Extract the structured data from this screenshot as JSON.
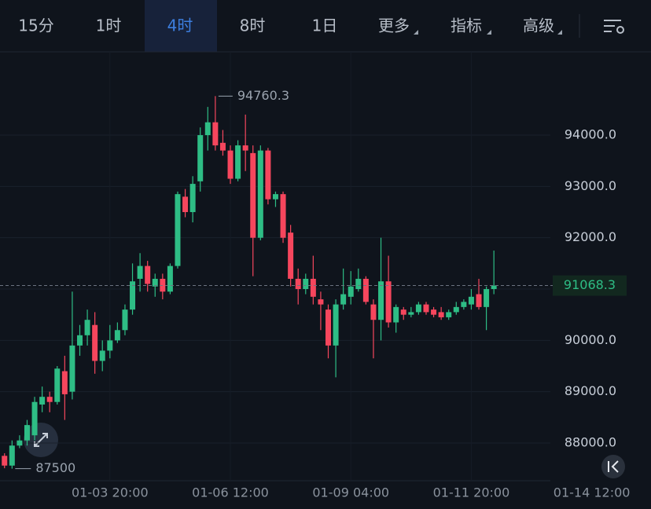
{
  "toolbar": {
    "tabs": [
      "15分",
      "1时",
      "4时",
      "8时",
      "1日",
      "更多",
      "指标",
      "高级"
    ],
    "active": 2
  },
  "chart_data": {
    "type": "candlestick",
    "x": [
      "01-01 12:00",
      "01-01 16:00",
      "01-01 20:00",
      "01-02 00:00",
      "01-02 04:00",
      "01-02 08:00",
      "01-02 12:00",
      "01-02 16:00",
      "01-02 20:00",
      "01-03 00:00",
      "01-03 04:00",
      "01-03 08:00",
      "01-03 12:00",
      "01-03 16:00",
      "01-03 20:00",
      "01-04 00:00",
      "01-04 04:00",
      "01-04 08:00",
      "01-04 12:00",
      "01-04 16:00",
      "01-04 20:00",
      "01-05 00:00",
      "01-05 04:00",
      "01-05 08:00",
      "01-05 12:00",
      "01-05 16:00",
      "01-05 20:00",
      "01-06 00:00",
      "01-06 04:00",
      "01-06 08:00",
      "01-06 12:00",
      "01-06 16:00",
      "01-06 20:00",
      "01-07 00:00",
      "01-07 04:00",
      "01-07 08:00",
      "01-07 12:00",
      "01-07 16:00",
      "01-07 20:00",
      "01-08 00:00",
      "01-08 04:00",
      "01-08 08:00",
      "01-08 12:00",
      "01-08 16:00",
      "01-08 20:00",
      "01-09 00:00",
      "01-09 04:00",
      "01-09 08:00",
      "01-09 12:00",
      "01-09 16:00",
      "01-09 20:00",
      "01-10 00:00",
      "01-10 04:00",
      "01-10 08:00",
      "01-10 12:00",
      "01-10 16:00",
      "01-10 20:00",
      "01-11 00:00",
      "01-11 04:00",
      "01-11 08:00",
      "01-11 12:00",
      "01-11 16:00",
      "01-11 20:00",
      "01-12 00:00",
      "01-12 04:00",
      "01-12 08:00"
    ],
    "open": [
      87750,
      87560,
      87950,
      88050,
      88150,
      88750,
      88900,
      88800,
      89400,
      89000,
      89900,
      90100,
      90300,
      89600,
      89800,
      90000,
      90200,
      90600,
      91200,
      91450,
      91050,
      91200,
      90950,
      91450,
      92800,
      92500,
      93100,
      94000,
      94250,
      93850,
      93700,
      93150,
      93800,
      93650,
      92000,
      93700,
      92750,
      92850,
      92100,
      91200,
      91000,
      91200,
      90800,
      90600,
      89900,
      90700,
      90850,
      91000,
      91200,
      90700,
      90400,
      91150,
      90350,
      90600,
      90500,
      90550,
      90700,
      90600,
      90550,
      90450,
      90550,
      90650,
      90700,
      90900,
      90650,
      91000
    ],
    "high": [
      87800,
      88050,
      88150,
      88450,
      88900,
      89100,
      89000,
      89500,
      89700,
      90950,
      90300,
      90600,
      90550,
      90000,
      90300,
      90350,
      90700,
      91500,
      91700,
      91550,
      91300,
      91300,
      91500,
      92900,
      92950,
      93200,
      94150,
      94550,
      94760.3,
      94100,
      93800,
      93900,
      94400,
      93800,
      93800,
      93750,
      92900,
      92900,
      92250,
      91400,
      91300,
      91650,
      90950,
      90700,
      90800,
      91400,
      91350,
      91400,
      91250,
      90800,
      92000,
      91650,
      90700,
      90650,
      90650,
      90750,
      90750,
      90650,
      90650,
      90600,
      90750,
      90800,
      91000,
      91200,
      91050,
      91750
    ],
    "low": [
      87508.4,
      87500,
      87900,
      87950,
      88050,
      88600,
      88600,
      88750,
      88450,
      88850,
      89700,
      89900,
      89350,
      89400,
      89650,
      89950,
      90100,
      90500,
      90950,
      90950,
      90850,
      90800,
      90900,
      91400,
      92400,
      92300,
      92900,
      93700,
      93700,
      93600,
      93050,
      93100,
      93300,
      91250,
      91950,
      92650,
      92600,
      91900,
      91050,
      90700,
      90900,
      90700,
      90200,
      89650,
      89280,
      90600,
      90700,
      90950,
      90700,
      89650,
      90000,
      90250,
      90150,
      90400,
      90450,
      90500,
      90500,
      90450,
      90400,
      90400,
      90500,
      90600,
      90600,
      90600,
      90200,
      90900
    ],
    "close": [
      87560,
      87950,
      88050,
      88350,
      88800,
      88900,
      88800,
      89450,
      88950,
      89900,
      90100,
      90400,
      89600,
      89800,
      90000,
      90200,
      90600,
      91150,
      91450,
      91100,
      91200,
      90950,
      91450,
      92850,
      92500,
      93050,
      94000,
      94250,
      93800,
      93700,
      93150,
      93800,
      93700,
      92000,
      93700,
      92750,
      92850,
      92000,
      91200,
      91000,
      91200,
      90850,
      90700,
      89900,
      90700,
      90900,
      91050,
      91200,
      90750,
      90400,
      91150,
      90350,
      90650,
      90500,
      90550,
      90700,
      90550,
      90500,
      90450,
      90550,
      90650,
      90750,
      90850,
      90650,
      91000,
      91068.3
    ],
    "up_color": "#2ebd85",
    "down_color": "#f6465d",
    "ylim": [
      87265,
      95623
    ],
    "yticks": [
      {
        "value": 88000,
        "label": "88000.0"
      },
      {
        "value": 89000,
        "label": "89000.0"
      },
      {
        "value": 90000,
        "label": "90000.0"
      },
      {
        "value": 91000,
        "label": "91000.0"
      },
      {
        "value": 92000,
        "label": "92000.0"
      },
      {
        "value": 93000,
        "label": "93000.0"
      },
      {
        "value": 94000,
        "label": "94000.0"
      }
    ],
    "xlim": [
      -0.6,
      81.9
    ],
    "xticks": [
      {
        "value": 14,
        "label": "01-03 20:00"
      },
      {
        "value": 30,
        "label": "01-06 12:00"
      },
      {
        "value": 46,
        "label": "01-09 04:00"
      },
      {
        "value": 62,
        "label": "01-11 20:00"
      },
      {
        "value": 78,
        "label": "01-14 12:00"
      }
    ],
    "grid": true
  }
}
